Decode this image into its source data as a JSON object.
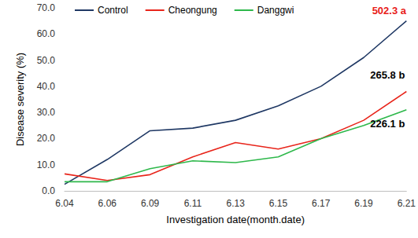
{
  "chart_data": {
    "type": "line",
    "x_label": "Investigation date(month.date)",
    "y_label": "Disease severity (%)",
    "categories": [
      "6.04",
      "6.06",
      "6.09",
      "6.11",
      "6.13",
      "6.15",
      "6.17",
      "6.19",
      "6.21"
    ],
    "series": [
      {
        "name": "Control",
        "color": "#1f3864",
        "values": [
          2.5,
          12.0,
          23.0,
          24.0,
          27.0,
          32.5,
          40.0,
          51.0,
          65.0
        ],
        "annotation": {
          "text": "502.3 a",
          "color": "#e8201a"
        }
      },
      {
        "name": "Cheongung",
        "color": "#e8251b",
        "values": [
          6.5,
          4.0,
          6.2,
          13.0,
          18.5,
          16.0,
          20.0,
          27.0,
          38.0
        ],
        "annotation": {
          "text": "265.8 b",
          "color": "#000000"
        }
      },
      {
        "name": "Danggwi",
        "color": "#2eb84b",
        "values": [
          3.5,
          3.5,
          8.5,
          11.5,
          10.8,
          13.0,
          20.0,
          25.0,
          31.0
        ],
        "annotation": {
          "text": "226.1 b",
          "color": "#000000"
        }
      }
    ],
    "ylim": [
      0,
      70
    ],
    "yticks": [
      {
        "value": 0,
        "label": "0.0"
      },
      {
        "value": 10,
        "label": "10.0"
      },
      {
        "value": 20,
        "label": "20.0"
      },
      {
        "value": 30,
        "label": "30.0"
      },
      {
        "value": 40,
        "label": "40.0"
      },
      {
        "value": 50,
        "label": "50.0"
      },
      {
        "value": 60,
        "label": "60.0"
      },
      {
        "value": 70,
        "label": "70.0"
      }
    ],
    "grid": false,
    "legend": "top"
  }
}
